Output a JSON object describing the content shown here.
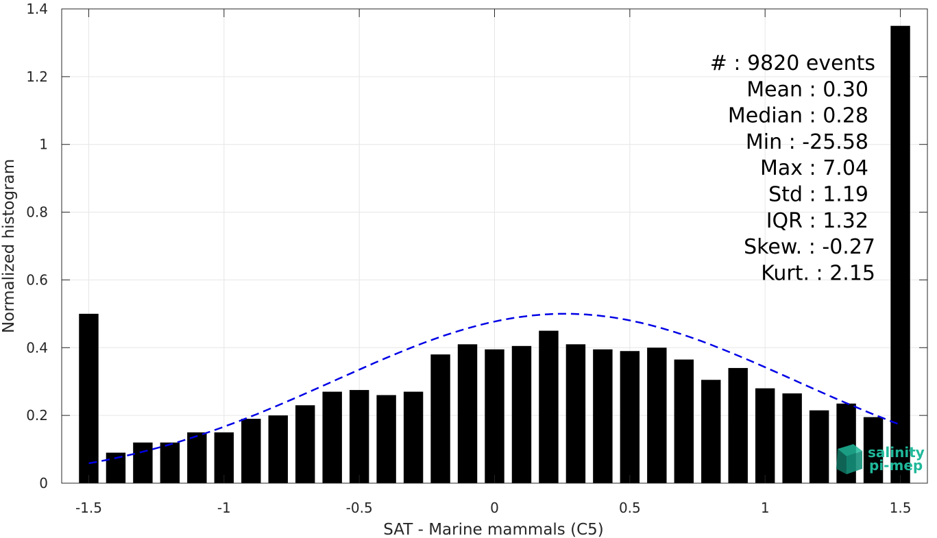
{
  "chart_data": {
    "type": "bar",
    "xlabel": "SAT - Marine mammals (C5)",
    "ylabel": "Normalized histogram",
    "xlim": [
      -1.6,
      1.6
    ],
    "ylim": [
      0,
      1.4
    ],
    "xticks": [
      -1.5,
      -1,
      -0.5,
      0,
      0.5,
      1,
      1.5
    ],
    "xtick_labels": [
      "-1.5",
      "-1",
      "-0.5",
      "0",
      "0.5",
      "1",
      "1.5"
    ],
    "yticks": [
      0,
      0.2,
      0.4,
      0.6,
      0.8,
      1,
      1.2,
      1.4
    ],
    "ytick_labels": [
      "0",
      "0.2",
      "0.4",
      "0.6",
      "0.8",
      "1",
      "1.2",
      "1.4"
    ],
    "grid": true,
    "bar_color": "#000000",
    "bars": {
      "x": [
        -1.5,
        -1.4,
        -1.3,
        -1.2,
        -1.1,
        -1.0,
        -0.9,
        -0.8,
        -0.7,
        -0.6,
        -0.5,
        -0.4,
        -0.3,
        -0.2,
        -0.1,
        0.0,
        0.1,
        0.2,
        0.3,
        0.4,
        0.5,
        0.6,
        0.7,
        0.8,
        0.9,
        1.0,
        1.1,
        1.2,
        1.3,
        1.4,
        1.5
      ],
      "values": [
        0.5,
        0.09,
        0.12,
        0.12,
        0.15,
        0.15,
        0.19,
        0.2,
        0.23,
        0.27,
        0.275,
        0.26,
        0.27,
        0.38,
        0.41,
        0.395,
        0.405,
        0.45,
        0.41,
        0.395,
        0.39,
        0.4,
        0.365,
        0.305,
        0.34,
        0.28,
        0.265,
        0.215,
        0.235,
        0.195,
        1.35
      ]
    },
    "fit_curve": {
      "style": "dashed",
      "color": "#0000e6",
      "distribution": "normal",
      "mean": 0.26,
      "peak": 0.5,
      "x_range": [
        -1.5,
        1.5
      ]
    },
    "stats": [
      {
        "label": "#  ",
        "value": ": 9820 events"
      },
      {
        "label": "Mean",
        "value": ": 0.30"
      },
      {
        "label": "Median",
        "value": ": 0.28"
      },
      {
        "label": "Min",
        "value": ": -25.58"
      },
      {
        "label": "Max",
        "value": ": 7.04"
      },
      {
        "label": "Std",
        "value": ": 1.19"
      },
      {
        "label": "IQR",
        "value": ": 1.32"
      },
      {
        "label": "Skew.",
        "value": ": -0.27"
      },
      {
        "label": "Kurt.",
        "value": ": 2.15"
      }
    ],
    "logo": {
      "line1": "salinity",
      "line2": "pi-mep",
      "color": "#1fb89a"
    }
  }
}
